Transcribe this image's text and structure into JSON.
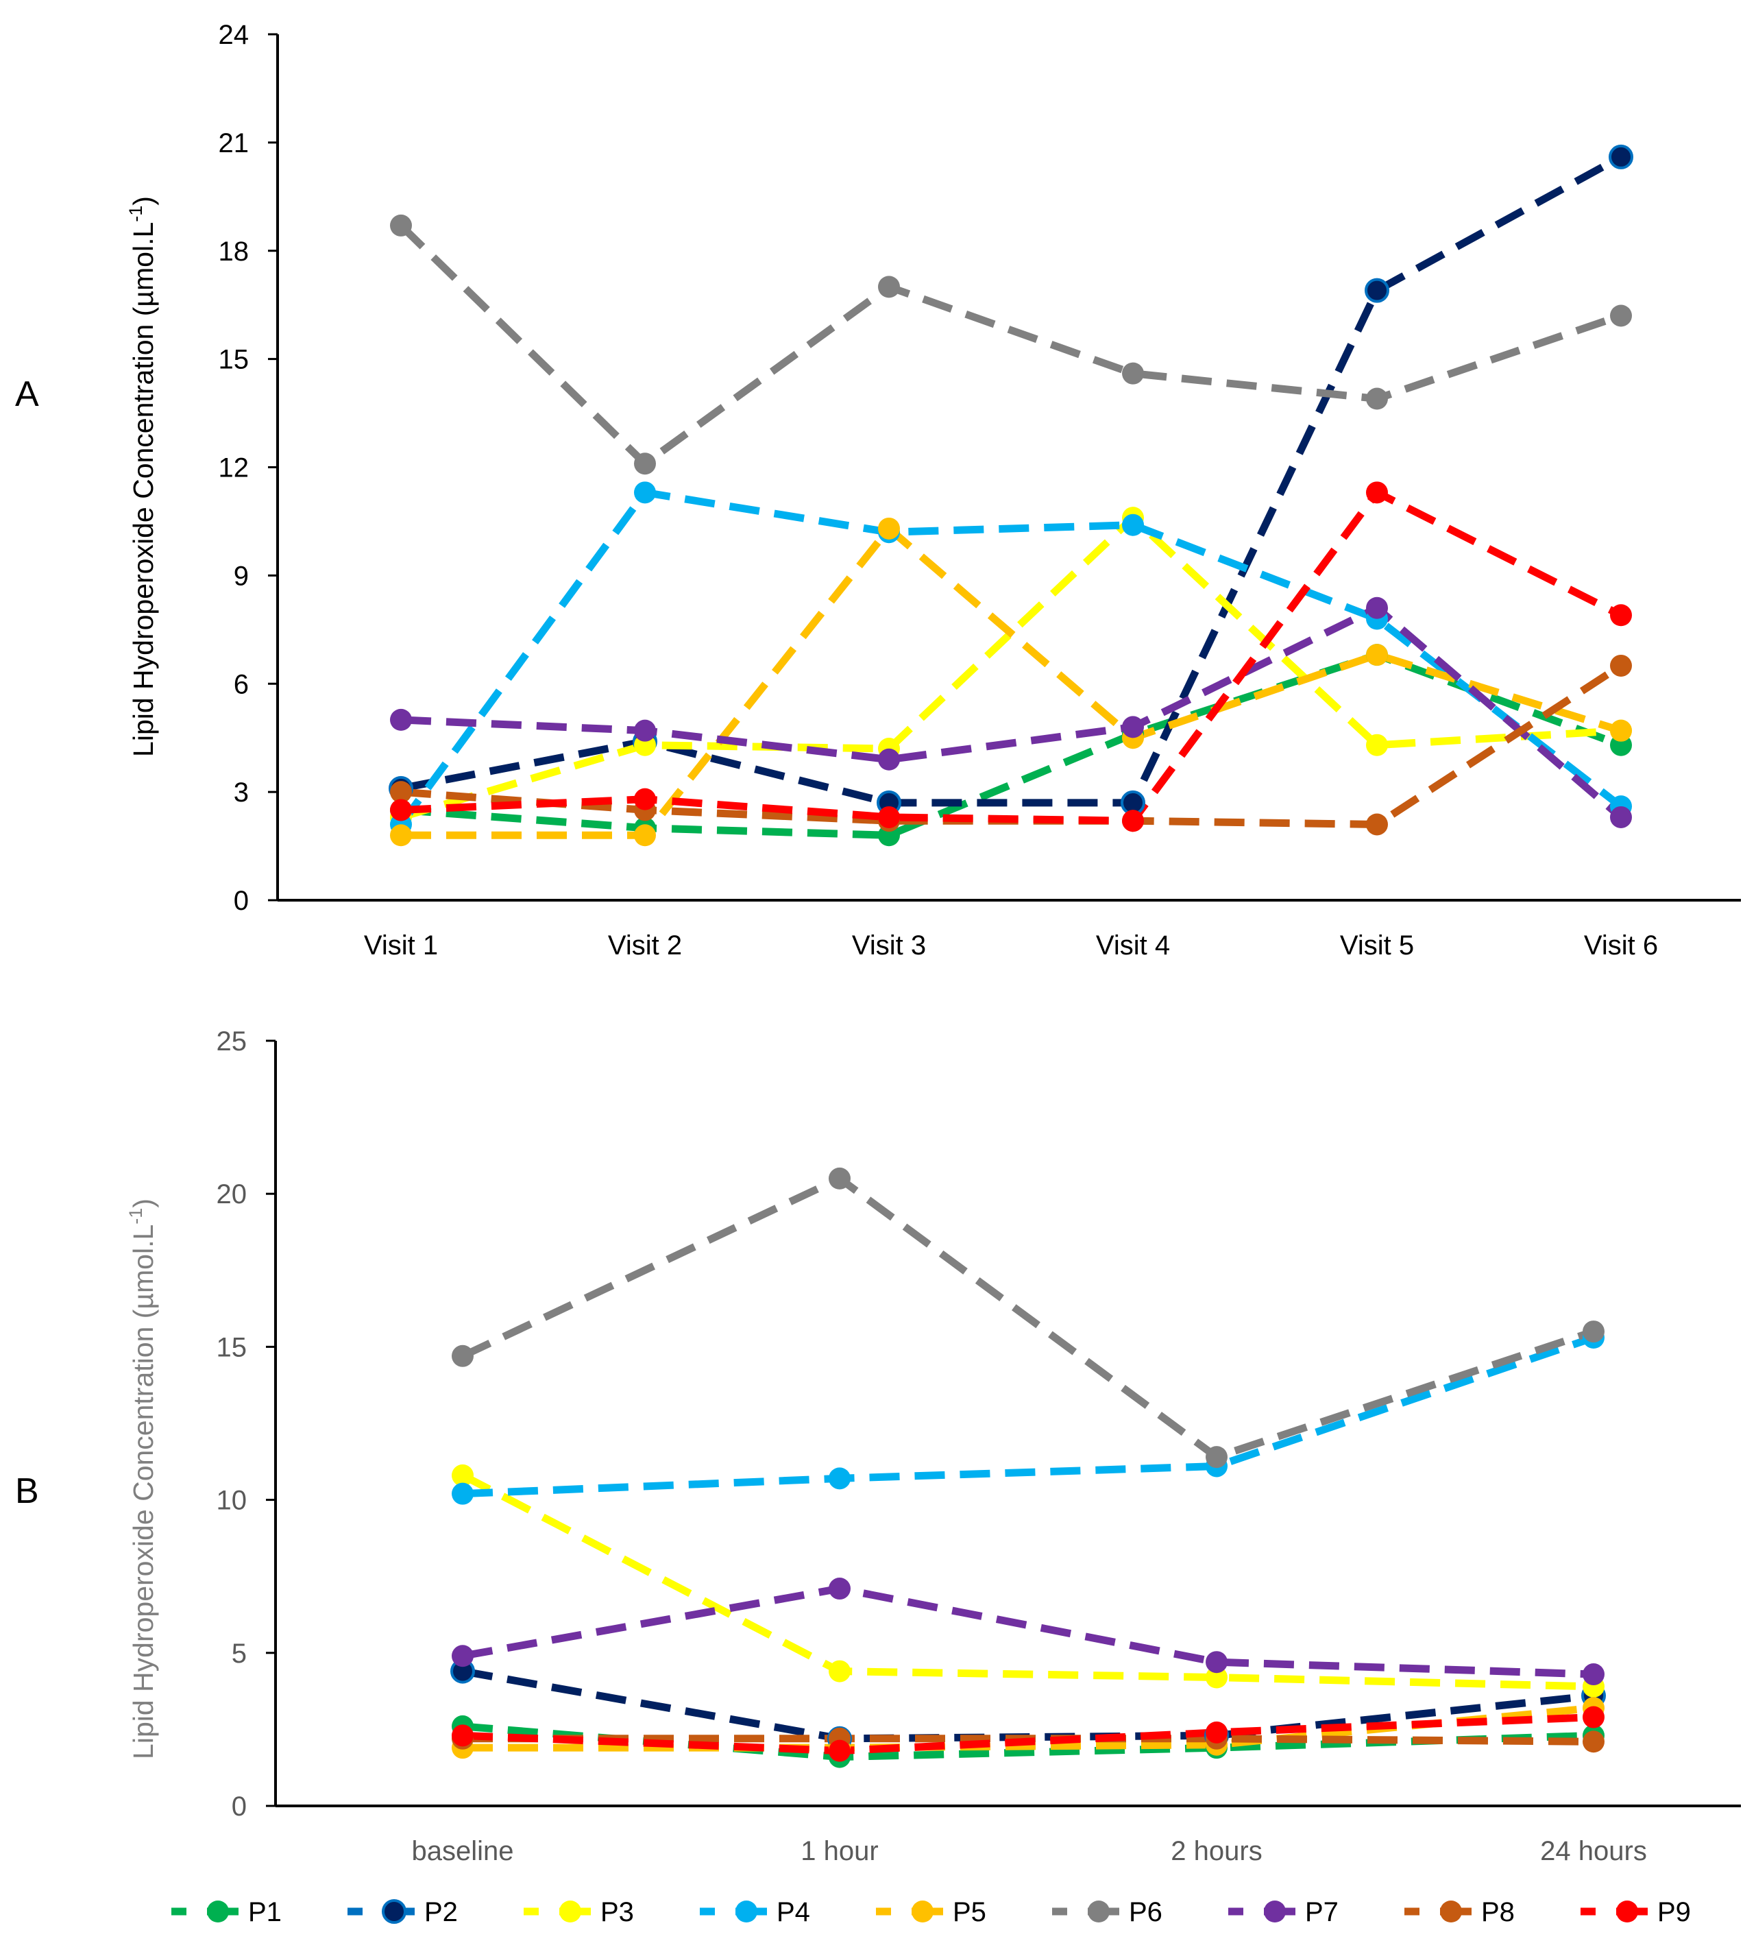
{
  "series_style": [
    {
      "name": "P1",
      "color": "#00b050",
      "marker": "circle"
    },
    {
      "name": "P2",
      "color": "#002060",
      "marker": "circle-ringed",
      "legend_color": "#0070c0"
    },
    {
      "name": "P3",
      "color": "#ffff00",
      "marker": "circle"
    },
    {
      "name": "P4",
      "color": "#00b0f0",
      "marker": "circle"
    },
    {
      "name": "P5",
      "color": "#ffc000",
      "marker": "circle"
    },
    {
      "name": "P6",
      "color": "#808080",
      "marker": "circle"
    },
    {
      "name": "P7",
      "color": "#7030a0",
      "marker": "circle"
    },
    {
      "name": "P8",
      "color": "#c55a11",
      "marker": "circle"
    },
    {
      "name": "P9",
      "color": "#ff0000",
      "marker": "circle"
    }
  ],
  "chart_data": [
    {
      "panel_label": "A",
      "type": "line",
      "line_style": "dashed",
      "xlabel": "",
      "ylabel": "Lipid Hydroperoxide Concentration (µmol.L",
      "ylabel_superscript": "-1",
      "ylabel_close": ")",
      "ylim": [
        0,
        24
      ],
      "yticks": [
        0,
        3,
        6,
        9,
        12,
        15,
        18,
        21,
        24
      ],
      "ytick_labels": [
        "0",
        "3",
        "6",
        "9",
        "12",
        "15",
        "18",
        "21",
        "24"
      ],
      "categories": [
        "Visit 1",
        "Visit 2",
        "Visit 3",
        "Visit 4",
        "Visit 5",
        "Visit 6"
      ],
      "series": [
        {
          "name": "P1",
          "values": [
            2.5,
            2.0,
            1.8,
            4.6,
            6.8,
            4.3
          ]
        },
        {
          "name": "P2",
          "values": [
            3.1,
            4.4,
            2.7,
            2.7,
            16.9,
            20.6
          ]
        },
        {
          "name": "P3",
          "values": [
            2.3,
            4.3,
            4.2,
            10.6,
            4.3,
            4.7
          ]
        },
        {
          "name": "P4",
          "values": [
            2.1,
            11.3,
            10.2,
            10.4,
            7.8,
            2.6
          ]
        },
        {
          "name": "P5",
          "values": [
            1.8,
            1.8,
            10.3,
            4.5,
            6.8,
            4.7
          ]
        },
        {
          "name": "P6",
          "values": [
            18.7,
            12.1,
            17.0,
            14.6,
            13.9,
            16.2
          ]
        },
        {
          "name": "P7",
          "values": [
            5.0,
            4.7,
            3.9,
            4.8,
            8.1,
            2.3
          ]
        },
        {
          "name": "P8",
          "values": [
            3.0,
            2.5,
            2.2,
            2.2,
            2.1,
            6.5
          ]
        },
        {
          "name": "P9",
          "values": [
            2.5,
            2.8,
            2.3,
            2.2,
            11.3,
            7.9
          ]
        }
      ]
    },
    {
      "panel_label": "B",
      "type": "line",
      "line_style": "dashed",
      "xlabel": "",
      "ylabel": "Lipid Hydroperoxide Concentration (µmol.L",
      "ylabel_superscript": "-1",
      "ylabel_close": ")",
      "ylim": [
        0,
        25
      ],
      "yticks": [
        0,
        5,
        10,
        15,
        20,
        25
      ],
      "ytick_labels": [
        "0",
        "5",
        "10",
        "15",
        "20",
        "25"
      ],
      "categories": [
        "baseline",
        "1 hour",
        "2 hours",
        "24 hours"
      ],
      "series": [
        {
          "name": "P1",
          "values": [
            2.6,
            1.6,
            1.9,
            2.3
          ]
        },
        {
          "name": "P2",
          "values": [
            4.4,
            2.2,
            2.3,
            3.6
          ]
        },
        {
          "name": "P3",
          "values": [
            10.8,
            4.4,
            4.2,
            3.9
          ]
        },
        {
          "name": "P4",
          "values": [
            10.2,
            10.7,
            11.1,
            15.3
          ]
        },
        {
          "name": "P5",
          "values": [
            1.9,
            1.9,
            2.0,
            3.2
          ]
        },
        {
          "name": "P6",
          "values": [
            14.7,
            20.5,
            11.4,
            15.5
          ]
        },
        {
          "name": "P7",
          "values": [
            4.9,
            7.1,
            4.7,
            4.3
          ]
        },
        {
          "name": "P8",
          "values": [
            2.2,
            2.2,
            2.2,
            2.1
          ]
        },
        {
          "name": "P9",
          "values": [
            2.3,
            1.8,
            2.4,
            2.9
          ]
        }
      ]
    }
  ],
  "legend": {
    "position": "bottom",
    "entries": [
      "P1",
      "P2",
      "P3",
      "P4",
      "P5",
      "P6",
      "P7",
      "P8",
      "P9"
    ]
  }
}
